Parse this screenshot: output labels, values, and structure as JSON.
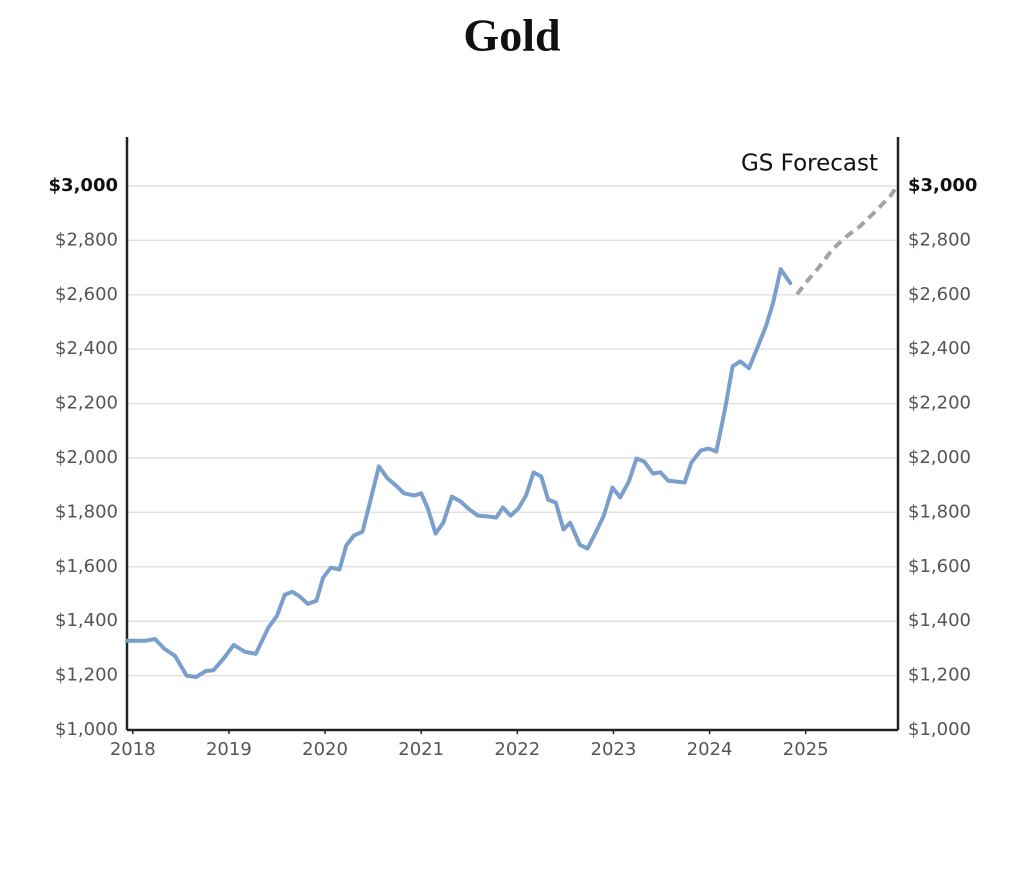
{
  "chart_data": {
    "type": "line",
    "title": "Gold",
    "annotation": "GS Forecast",
    "xlim": [
      2017.94,
      2025.96
    ],
    "xticks": [
      2018,
      2019,
      2020,
      2021,
      2022,
      2023,
      2024,
      2025
    ],
    "ylim": [
      1000,
      3180
    ],
    "yticks": [
      {
        "value": 1000,
        "label": "$1,000"
      },
      {
        "value": 1200,
        "label": "$1,200"
      },
      {
        "value": 1400,
        "label": "$1,400"
      },
      {
        "value": 1600,
        "label": "$1,600"
      },
      {
        "value": 1800,
        "label": "$1,800"
      },
      {
        "value": 2000,
        "label": "$2,000"
      },
      {
        "value": 2200,
        "label": "$2,200"
      },
      {
        "value": 2400,
        "label": "$2,400"
      },
      {
        "value": 2600,
        "label": "$2,600"
      },
      {
        "value": 2800,
        "label": "$2,800"
      },
      {
        "value": 3000,
        "label": "$3,000"
      }
    ],
    "grid": true,
    "series": [
      {
        "color": "#7b9fcc",
        "dashed": false,
        "x": [
          2017.94,
          2018.13,
          2018.23,
          2018.33,
          2018.44,
          2018.56,
          2018.66,
          2018.76,
          2018.84,
          2018.95,
          2019.05,
          2019.17,
          2019.28,
          2019.41,
          2019.5,
          2019.58,
          2019.66,
          2019.74,
          2019.82,
          2019.91,
          2019.98,
          2020.06,
          2020.15,
          2020.22,
          2020.3,
          2020.39,
          2020.48,
          2020.56,
          2020.65,
          2020.75,
          2020.82,
          2020.93,
          2021,
          2021.07,
          2021.15,
          2021.23,
          2021.32,
          2021.41,
          2021.49,
          2021.59,
          2021.7,
          2021.78,
          2021.85,
          2021.93,
          2022.01,
          2022.09,
          2022.17,
          2022.25,
          2022.32,
          2022.4,
          2022.48,
          2022.55,
          2022.65,
          2022.73,
          2022.81,
          2022.9,
          2022.99,
          2023.07,
          2023.16,
          2023.24,
          2023.32,
          2023.41,
          2023.49,
          2023.57,
          2023.66,
          2023.74,
          2023.81,
          2023.91,
          2023.99,
          2024.07,
          2024.16,
          2024.24,
          2024.32,
          2024.41,
          2024.49,
          2024.59,
          2024.66,
          2024.74,
          2024.84
        ],
        "values": [
          1328,
          1328,
          1335,
          1298,
          1272,
          1200,
          1195,
          1217,
          1220,
          1265,
          1313,
          1287,
          1280,
          1376,
          1420,
          1497,
          1508,
          1490,
          1464,
          1475,
          1560,
          1597,
          1590,
          1678,
          1715,
          1729,
          1855,
          1969,
          1925,
          1895,
          1870,
          1862,
          1870,
          1814,
          1722,
          1762,
          1858,
          1840,
          1814,
          1788,
          1785,
          1781,
          1818,
          1788,
          1814,
          1862,
          1947,
          1932,
          1847,
          1836,
          1737,
          1762,
          1681,
          1667,
          1722,
          1788,
          1891,
          1855,
          1913,
          1998,
          1987,
          1943,
          1947,
          1917,
          1913,
          1910,
          1983,
          2028,
          2035,
          2024,
          2179,
          2337,
          2355,
          2330,
          2399,
          2488,
          2569,
          2694,
          2643
        ]
      },
      {
        "color": "#a3a3a3",
        "dashed": true,
        "x": [
          2024.91,
          2025.03,
          2025.14,
          2025.28,
          2025.43,
          2025.57,
          2025.74,
          2025.89,
          2025.94
        ],
        "values": [
          2602,
          2657,
          2702,
          2768,
          2816,
          2853,
          2912,
          2967,
          2996
        ]
      }
    ]
  }
}
